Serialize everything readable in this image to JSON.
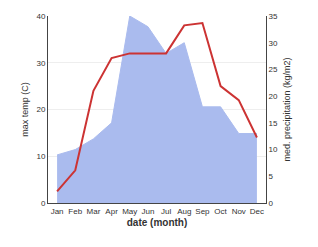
{
  "chart_data": {
    "type": "line",
    "categories": [
      "Jan",
      "Feb",
      "Mar",
      "Apr",
      "May",
      "Jun",
      "Jul",
      "Aug",
      "Sep",
      "Oct",
      "Nov",
      "Dec"
    ],
    "series": [
      {
        "type": "area",
        "axis": "y2",
        "color": "#aabbee",
        "values": [
          9.0,
          10.0,
          12.0,
          15.0,
          35.0,
          33.0,
          28.0,
          30.0,
          18.0,
          18.0,
          13.0,
          13.0
        ]
      },
      {
        "type": "line",
        "color": "#cc3333",
        "values": [
          2.5,
          7.0,
          24.0,
          31.0,
          32.0,
          32.0,
          32.0,
          38.0,
          38.5,
          25.0,
          22.0,
          14.0
        ]
      }
    ],
    "xlabel": "date (month)",
    "ylabel": "max temp (C)",
    "y2label": "med. precipitation (kg/m2)",
    "ylim": [
      0,
      40
    ],
    "yticks": [
      0,
      10,
      20,
      30,
      40
    ],
    "y2lim": [
      0,
      35
    ],
    "y2ticks": [
      0,
      5,
      10,
      15,
      20,
      25,
      30,
      35
    ],
    "grid": true
  }
}
